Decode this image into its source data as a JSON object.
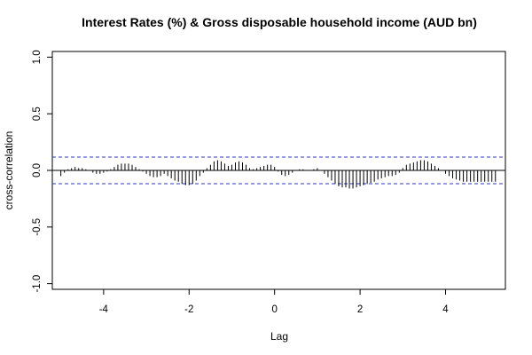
{
  "chart_data": {
    "type": "bar",
    "title": "Interest Rates (%) & Gross disposable household income (AUD bn)",
    "xlabel": "Lag",
    "ylabel": "cross-correlation",
    "xlim": [
      -5.2,
      5.4
    ],
    "ylim": [
      -1.05,
      1.05
    ],
    "x_ticks": [
      -4,
      -2,
      0,
      2,
      4
    ],
    "x_tick_labels": [
      "-4",
      "-2",
      "0",
      "2",
      "4"
    ],
    "y_ticks": [
      -1.0,
      -0.5,
      0.0,
      0.5,
      1.0
    ],
    "y_tick_labels": [
      "-1.0",
      "-0.5",
      "0.0",
      "0.5",
      "1.0"
    ],
    "confidence_bounds": [
      0.118,
      -0.118
    ],
    "lag_step": 0.08333333,
    "lag_start": -5,
    "values": [
      -0.05,
      -0.02,
      0.01,
      0.02,
      0.03,
      0.02,
      0.02,
      0.01,
      0.0,
      -0.02,
      -0.03,
      -0.03,
      -0.02,
      -0.01,
      0.01,
      0.03,
      0.05,
      0.06,
      0.06,
      0.06,
      0.05,
      0.03,
      0.01,
      -0.01,
      -0.03,
      -0.05,
      -0.06,
      -0.06,
      -0.05,
      -0.03,
      -0.05,
      -0.07,
      -0.09,
      -0.1,
      -0.12,
      -0.13,
      -0.13,
      -0.12,
      -0.09,
      -0.05,
      -0.02,
      0.02,
      0.05,
      0.08,
      0.09,
      0.08,
      0.06,
      0.04,
      0.05,
      0.07,
      0.08,
      0.07,
      0.05,
      0.02,
      0.01,
      0.02,
      0.03,
      0.04,
      0.05,
      0.05,
      0.03,
      -0.01,
      -0.04,
      -0.05,
      -0.04,
      -0.02,
      0.0,
      0.01,
      0.01,
      0.0,
      0.0,
      0.01,
      0.02,
      0.0,
      -0.03,
      -0.06,
      -0.09,
      -0.12,
      -0.14,
      -0.15,
      -0.15,
      -0.16,
      -0.16,
      -0.15,
      -0.14,
      -0.13,
      -0.12,
      -0.11,
      -0.1,
      -0.08,
      -0.07,
      -0.06,
      -0.05,
      -0.05,
      -0.04,
      -0.02,
      0.02,
      0.05,
      0.06,
      0.07,
      0.08,
      0.09,
      0.09,
      0.08,
      0.06,
      0.04,
      0.02,
      0.0,
      -0.03,
      -0.05,
      -0.07,
      -0.08,
      -0.09,
      -0.1,
      -0.1,
      -0.1,
      -0.1,
      -0.1,
      -0.1,
      -0.1,
      -0.1,
      -0.1,
      -0.1
    ],
    "colors": {
      "bars": "#000000",
      "zero_line": "#000000",
      "confidence": "#3333cc",
      "frame": "#000000"
    },
    "grid": false
  }
}
